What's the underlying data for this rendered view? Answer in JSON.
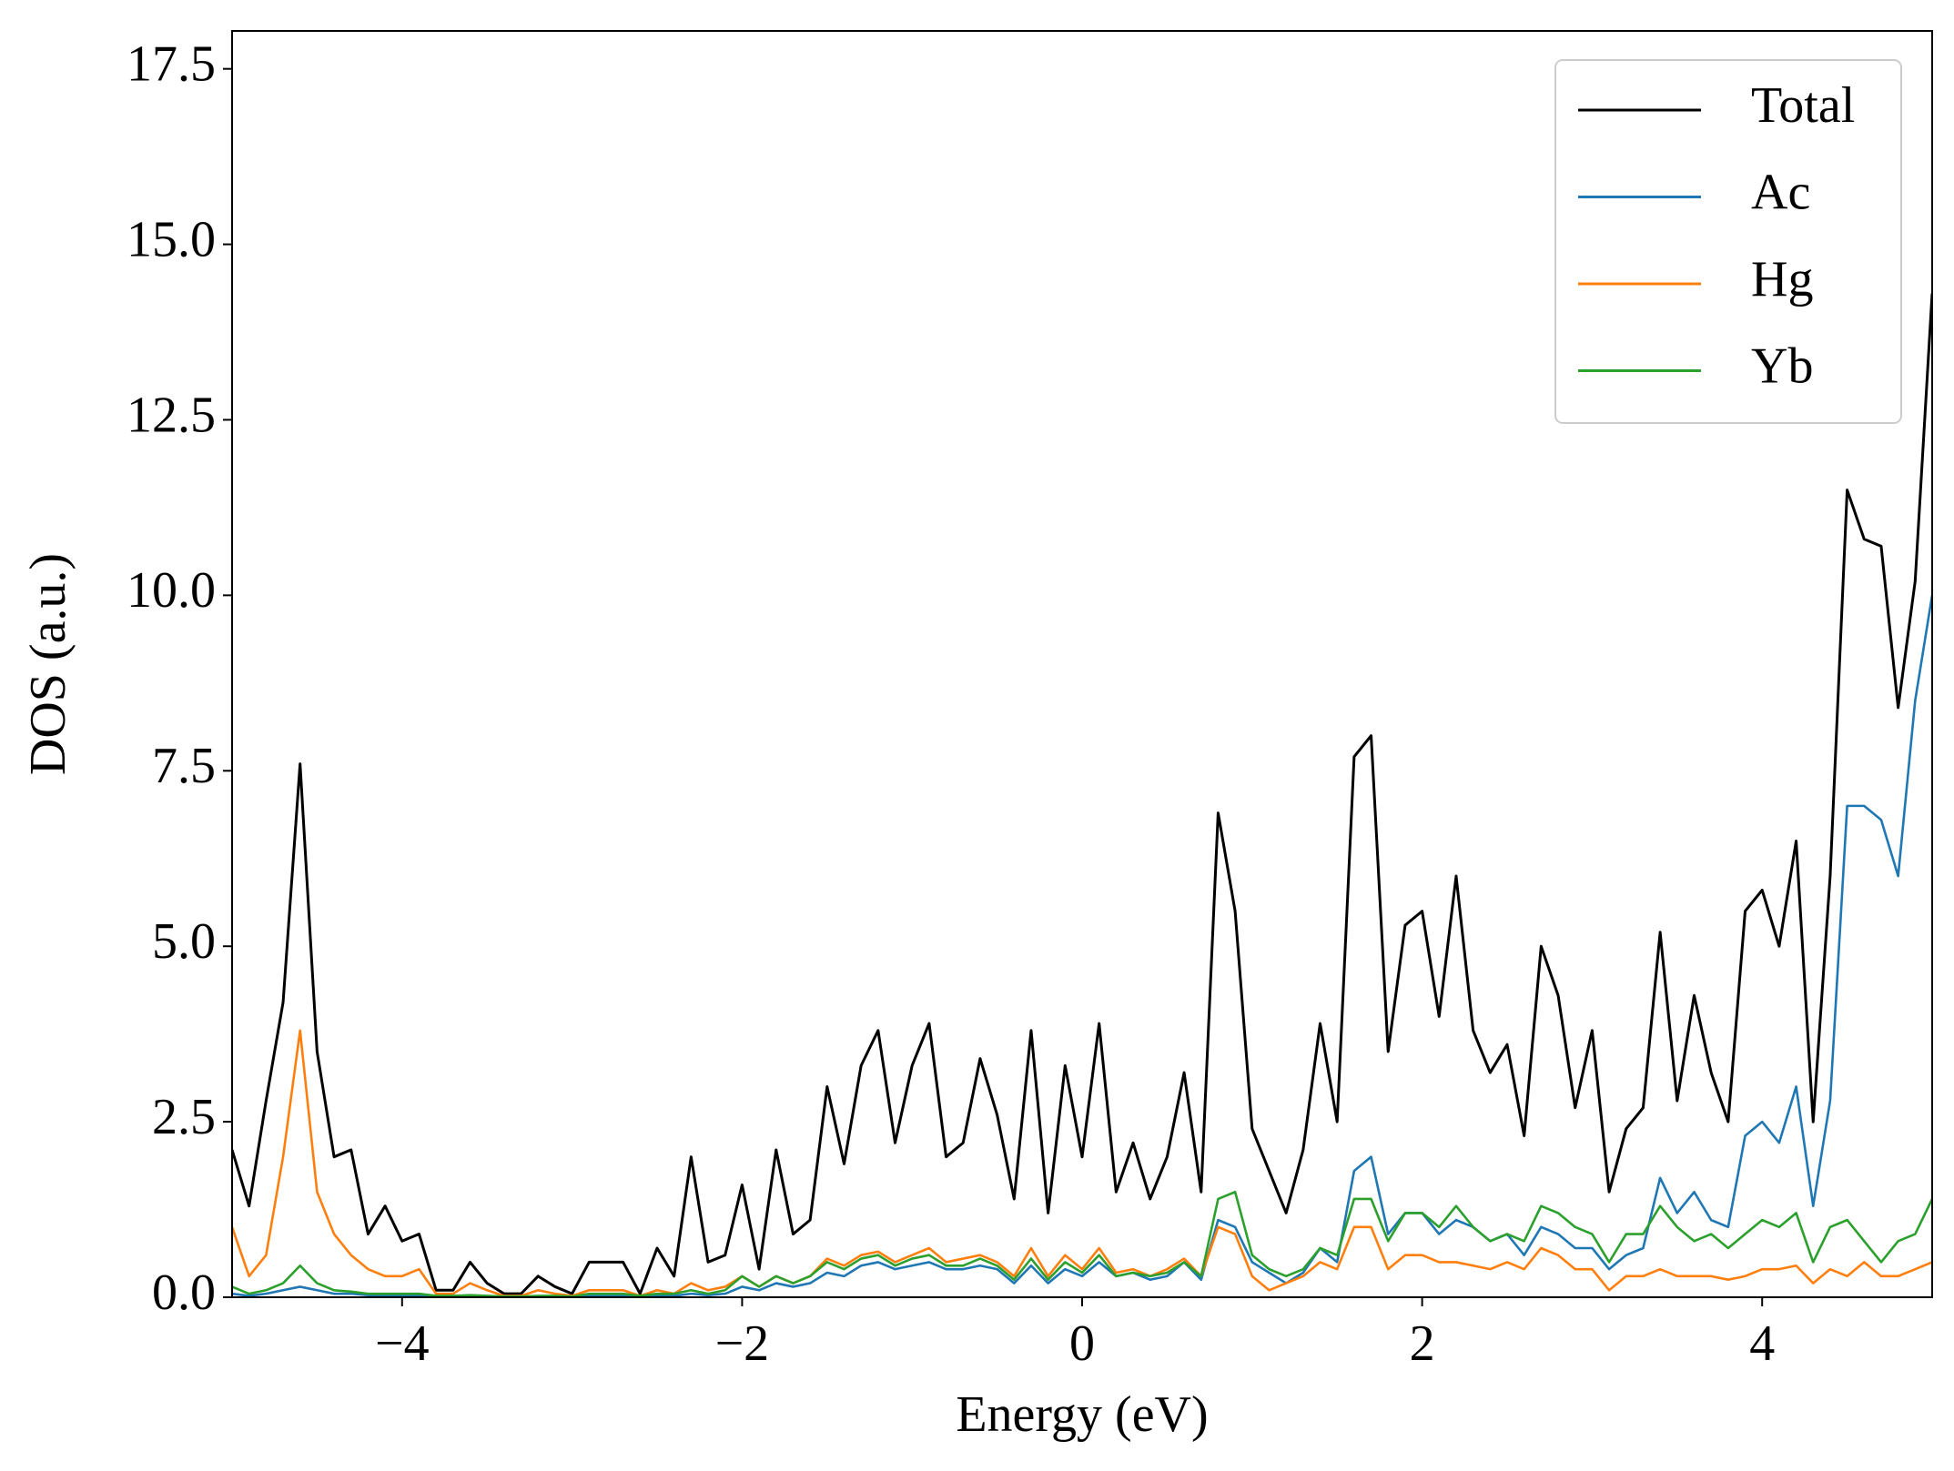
{
  "chart_data": {
    "type": "line",
    "xlabel": "Energy (eV)",
    "ylabel": "DOS (a.u.)",
    "xlim": [
      -5,
      5
    ],
    "ylim": [
      0,
      18.04
    ],
    "xticks": [
      {
        "value": -4,
        "label": "−4"
      },
      {
        "value": -2,
        "label": "−2"
      },
      0,
      2,
      4
    ],
    "yticks": [
      {
        "value": 0,
        "label": "0.0"
      },
      2.5,
      {
        "value": 5,
        "label": "5.0"
      },
      7.5,
      {
        "value": 10,
        "label": "10.0"
      },
      12.5,
      {
        "value": 15,
        "label": "15.0"
      },
      17.5
    ],
    "legend": "upper right",
    "x": [
      -5,
      -4.9,
      -4.8,
      -4.7,
      -4.6,
      -4.5,
      -4.4,
      -4.3,
      -4.2,
      -4.1,
      -4,
      -3.9,
      -3.8,
      -3.7,
      -3.6,
      -3.5,
      -3.4,
      -3.3,
      -3.2,
      -3.1,
      -3,
      -2.9,
      -2.8,
      -2.7,
      -2.6,
      -2.5,
      -2.4,
      -2.3,
      -2.2,
      -2.1,
      -2,
      -1.9,
      -1.8,
      -1.7,
      -1.6,
      -1.5,
      -1.4,
      -1.3,
      -1.2,
      -1.1,
      -1,
      -0.9,
      -0.8,
      -0.7,
      -0.6,
      -0.5,
      -0.4,
      -0.3,
      -0.2,
      -0.1,
      0,
      0.1,
      0.2,
      0.3,
      0.4,
      0.5,
      0.6,
      0.7,
      0.8,
      0.9,
      1,
      1.1,
      1.2,
      1.3,
      1.4,
      1.5,
      1.6,
      1.7,
      1.8,
      1.9,
      2,
      2.1,
      2.2,
      2.3,
      2.4,
      2.5,
      2.6,
      2.7,
      2.8,
      2.9,
      3,
      3.1,
      3.2,
      3.3,
      3.4,
      3.5,
      3.6,
      3.7,
      3.8,
      3.9,
      4,
      4.1,
      4.2,
      4.3,
      4.4,
      4.5,
      4.6,
      4.7,
      4.8,
      4.9,
      5
    ],
    "series": [
      {
        "name": "Total",
        "color": "#000000",
        "values": [
          2.1,
          1.3,
          2.8,
          4.2,
          7.6,
          3.5,
          2.0,
          2.1,
          0.9,
          1.3,
          0.8,
          0.9,
          0.1,
          0.1,
          0.5,
          0.2,
          0.05,
          0.05,
          0.3,
          0.15,
          0.05,
          0.5,
          0.5,
          0.5,
          0.05,
          0.7,
          0.3,
          2.0,
          0.5,
          0.6,
          1.6,
          0.4,
          2.1,
          0.9,
          1.1,
          3.0,
          1.9,
          3.3,
          3.8,
          2.2,
          3.3,
          3.9,
          2.0,
          2.2,
          3.4,
          2.6,
          1.4,
          3.8,
          1.2,
          3.3,
          2.0,
          3.9,
          1.5,
          2.2,
          1.4,
          2.0,
          3.2,
          1.5,
          6.9,
          5.5,
          2.4,
          1.8,
          1.2,
          2.1,
          3.9,
          2.5,
          7.7,
          8.0,
          3.5,
          5.3,
          5.5,
          4.0,
          6.0,
          3.8,
          3.2,
          3.6,
          2.3,
          5.0,
          4.3,
          2.7,
          3.8,
          1.5,
          2.4,
          2.7,
          5.2,
          2.8,
          4.3,
          3.2,
          2.5,
          5.5,
          5.8,
          5.0,
          6.5,
          2.5,
          6.0,
          11.5,
          10.8,
          10.7,
          8.4,
          10.2,
          14.3
        ]
      },
      {
        "name": "Ac",
        "color": "#1f77b4",
        "values": [
          0.05,
          0.02,
          0.05,
          0.1,
          0.15,
          0.1,
          0.05,
          0.05,
          0.03,
          0.03,
          0.02,
          0.02,
          0.01,
          0.01,
          0.02,
          0.01,
          0.01,
          0.01,
          0.01,
          0.01,
          0.01,
          0.02,
          0.03,
          0.03,
          0.01,
          0.03,
          0.02,
          0.05,
          0.03,
          0.05,
          0.15,
          0.1,
          0.2,
          0.15,
          0.2,
          0.35,
          0.3,
          0.45,
          0.5,
          0.4,
          0.45,
          0.5,
          0.4,
          0.4,
          0.45,
          0.4,
          0.2,
          0.45,
          0.2,
          0.4,
          0.3,
          0.5,
          0.3,
          0.35,
          0.25,
          0.3,
          0.5,
          0.25,
          1.1,
          1.0,
          0.5,
          0.35,
          0.2,
          0.35,
          0.7,
          0.5,
          1.8,
          2.0,
          0.9,
          1.2,
          1.2,
          0.9,
          1.1,
          1.0,
          0.8,
          0.9,
          0.6,
          1.0,
          0.9,
          0.7,
          0.7,
          0.4,
          0.6,
          0.7,
          1.7,
          1.2,
          1.5,
          1.1,
          1.0,
          2.3,
          2.5,
          2.2,
          3.0,
          1.3,
          2.8,
          7.0,
          7.0,
          6.8,
          6.0,
          8.5,
          10.0
        ]
      },
      {
        "name": "Hg",
        "color": "#ff7f0e",
        "values": [
          1.0,
          0.3,
          0.6,
          2.0,
          3.8,
          1.5,
          0.9,
          0.6,
          0.4,
          0.3,
          0.3,
          0.4,
          0.05,
          0.05,
          0.2,
          0.1,
          0.02,
          0.02,
          0.1,
          0.05,
          0.02,
          0.1,
          0.1,
          0.1,
          0.02,
          0.1,
          0.05,
          0.2,
          0.1,
          0.15,
          0.3,
          0.15,
          0.3,
          0.2,
          0.3,
          0.55,
          0.45,
          0.6,
          0.65,
          0.5,
          0.6,
          0.7,
          0.5,
          0.55,
          0.6,
          0.5,
          0.3,
          0.7,
          0.3,
          0.6,
          0.4,
          0.7,
          0.35,
          0.4,
          0.3,
          0.4,
          0.55,
          0.3,
          1.0,
          0.9,
          0.3,
          0.1,
          0.2,
          0.3,
          0.5,
          0.4,
          1.0,
          1.0,
          0.4,
          0.6,
          0.6,
          0.5,
          0.5,
          0.45,
          0.4,
          0.5,
          0.4,
          0.7,
          0.6,
          0.4,
          0.4,
          0.1,
          0.3,
          0.3,
          0.4,
          0.3,
          0.3,
          0.3,
          0.25,
          0.3,
          0.4,
          0.4,
          0.45,
          0.2,
          0.4,
          0.3,
          0.5,
          0.3,
          0.3,
          0.4,
          0.5
        ]
      },
      {
        "name": "Yb",
        "color": "#2ca02c",
        "values": [
          0.15,
          0.05,
          0.1,
          0.2,
          0.45,
          0.2,
          0.1,
          0.08,
          0.05,
          0.05,
          0.05,
          0.05,
          0.02,
          0.02,
          0.03,
          0.02,
          0.01,
          0.01,
          0.02,
          0.02,
          0.01,
          0.05,
          0.05,
          0.05,
          0.02,
          0.05,
          0.05,
          0.1,
          0.05,
          0.1,
          0.3,
          0.15,
          0.3,
          0.2,
          0.3,
          0.5,
          0.4,
          0.55,
          0.6,
          0.45,
          0.55,
          0.6,
          0.45,
          0.45,
          0.55,
          0.45,
          0.25,
          0.55,
          0.25,
          0.5,
          0.35,
          0.6,
          0.3,
          0.35,
          0.3,
          0.35,
          0.5,
          0.3,
          1.4,
          1.5,
          0.6,
          0.4,
          0.3,
          0.4,
          0.7,
          0.6,
          1.4,
          1.4,
          0.8,
          1.2,
          1.2,
          1.0,
          1.3,
          1.0,
          0.8,
          0.9,
          0.8,
          1.3,
          1.2,
          1.0,
          0.9,
          0.5,
          0.9,
          0.9,
          1.3,
          1.0,
          0.8,
          0.9,
          0.7,
          0.9,
          1.1,
          1.0,
          1.2,
          0.5,
          1.0,
          1.1,
          0.8,
          0.5,
          0.8,
          0.9,
          1.4
        ]
      }
    ]
  }
}
